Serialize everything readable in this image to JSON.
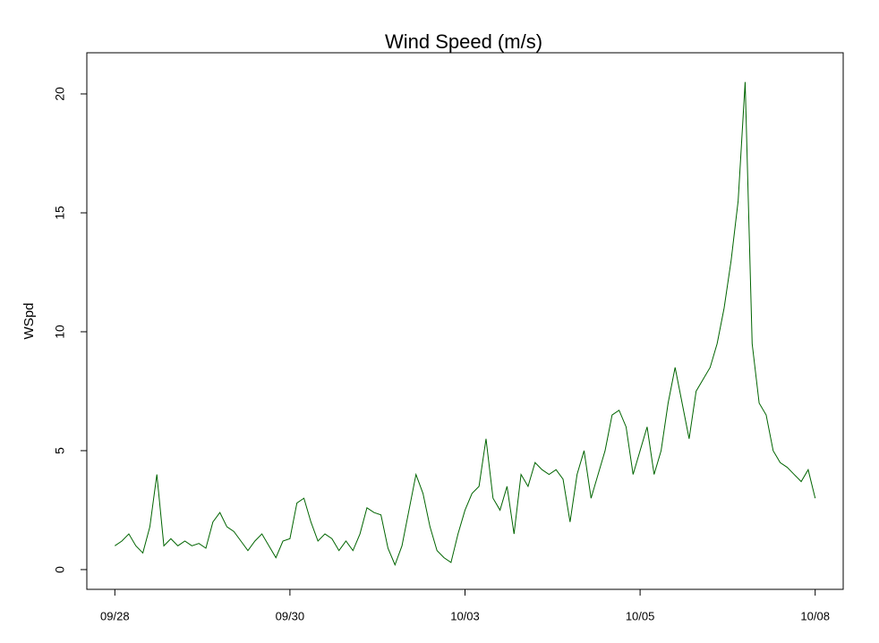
{
  "chart_data": {
    "type": "line",
    "title": "Wind Speed (m/s)",
    "y_label": "WSpd",
    "x": [
      0,
      0.1,
      0.2,
      0.3,
      0.4,
      0.5,
      0.6,
      0.7,
      0.8,
      0.9,
      1,
      1.1,
      1.2,
      1.3,
      1.4,
      1.5,
      1.6,
      1.7,
      1.8,
      1.9,
      2,
      2.1,
      2.2,
      2.3,
      2.4,
      2.5,
      2.6,
      2.7,
      2.8,
      2.9,
      3,
      3.1,
      3.2,
      3.3,
      3.4,
      3.5,
      3.6,
      3.7,
      3.8,
      3.9,
      4,
      4.1,
      4.2,
      4.3,
      4.4,
      4.5,
      4.6,
      4.7,
      4.8,
      4.9,
      5,
      5.1,
      5.2,
      5.3,
      5.4,
      5.5,
      5.6,
      5.7,
      5.8,
      5.9,
      6,
      6.1,
      6.2,
      6.3,
      6.4,
      6.5,
      6.6,
      6.7,
      6.8,
      6.9,
      7,
      7.1,
      7.2,
      7.3,
      7.4,
      7.5,
      7.6,
      7.7,
      7.8,
      7.9,
      8,
      8.1,
      8.2,
      8.3,
      8.4,
      8.5,
      8.6,
      8.7,
      8.8,
      8.9,
      9,
      9.1,
      9.2,
      9.3,
      9.4,
      9.5,
      9.6,
      9.7,
      9.8,
      9.9,
      10
    ],
    "series": [
      {
        "name": "WSpd",
        "color": "#006400",
        "values": [
          1.0,
          1.2,
          1.5,
          1.0,
          0.7,
          1.8,
          4.0,
          1.0,
          1.3,
          1.0,
          1.2,
          1.0,
          1.1,
          0.9,
          2.0,
          2.4,
          1.8,
          1.6,
          1.2,
          0.8,
          1.2,
          1.5,
          1.0,
          0.5,
          1.2,
          1.3,
          2.8,
          3.0,
          2.0,
          1.2,
          1.5,
          1.3,
          0.8,
          1.2,
          0.8,
          1.5,
          2.6,
          2.4,
          2.3,
          0.9,
          0.2,
          1.0,
          2.5,
          4.0,
          3.2,
          1.8,
          0.8,
          0.5,
          0.3,
          1.5,
          2.5,
          3.2,
          3.5,
          5.5,
          3.0,
          2.5,
          3.5,
          1.5,
          4.0,
          3.5,
          4.5,
          4.2,
          4.0,
          4.2,
          3.8,
          2.0,
          4.0,
          5.0,
          3.0,
          4.0,
          5.0,
          6.5,
          6.7,
          6.0,
          4.0,
          5.0,
          6.0,
          4.0,
          5.0,
          7.0,
          8.5,
          7.0,
          5.5,
          7.5,
          8.0,
          8.5,
          9.5,
          11.0,
          13.0,
          15.5,
          20.5,
          9.5,
          7.0,
          6.5,
          5.0,
          4.5,
          4.3,
          4.0,
          3.7,
          4.2,
          3.0
        ]
      }
    ],
    "xlim": [
      -0.4,
      10.4
    ],
    "xticks": [
      {
        "value": 0,
        "label": "09/28"
      },
      {
        "value": 2.5,
        "label": "09/30"
      },
      {
        "value": 5,
        "label": "10/03"
      },
      {
        "value": 7.5,
        "label": "10/05"
      },
      {
        "value": 10,
        "label": "10/08"
      }
    ],
    "ylim": [
      -0.83,
      21.73
    ],
    "yticks": [
      0,
      5,
      10,
      15,
      20
    ]
  }
}
